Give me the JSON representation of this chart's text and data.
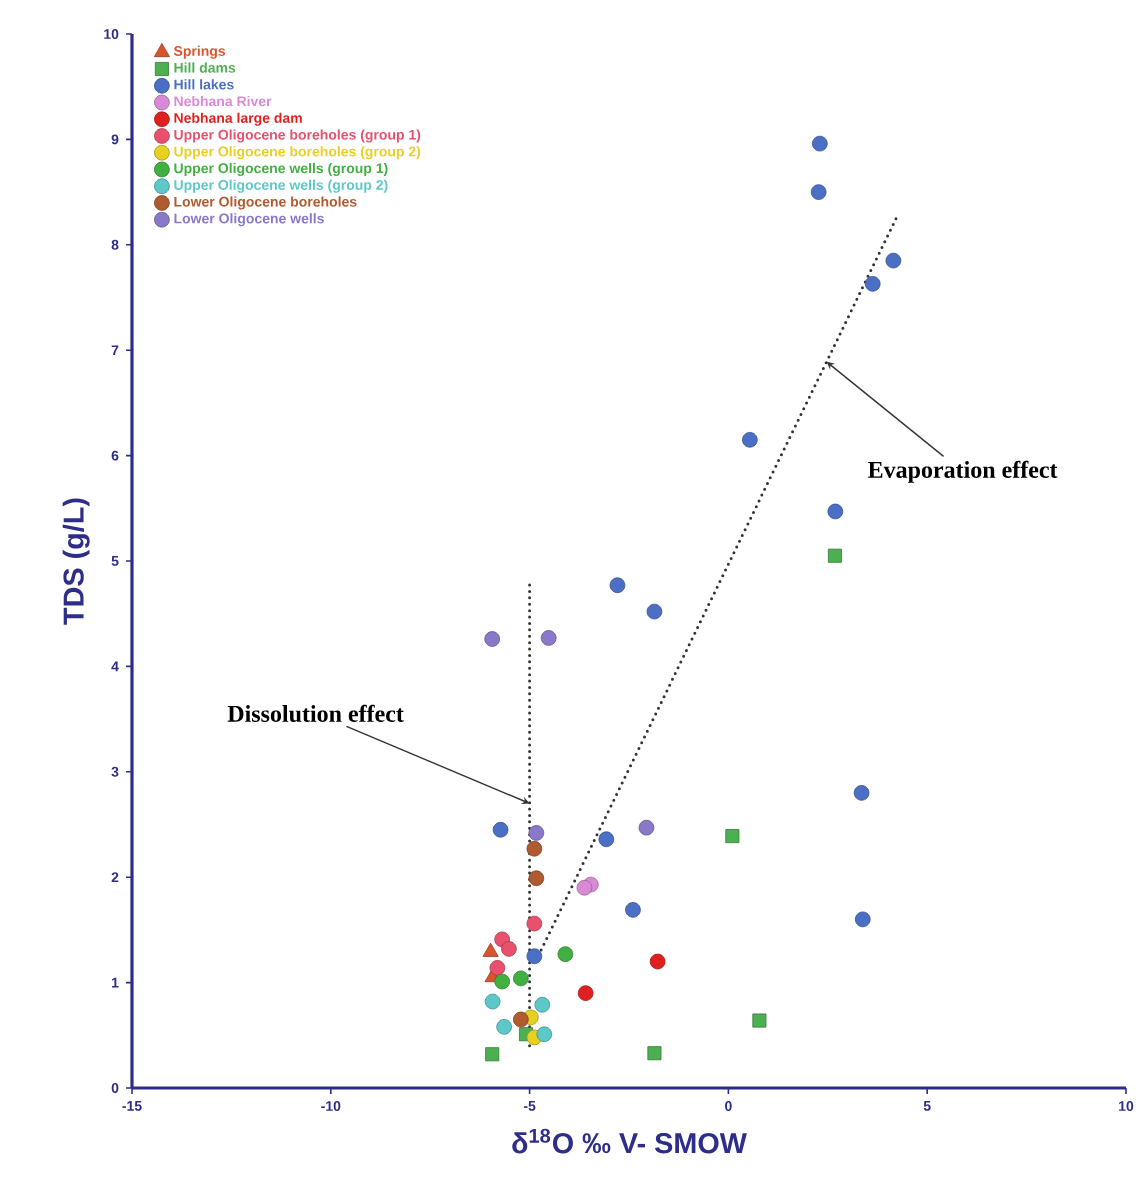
{
  "chart_data": {
    "type": "scatter",
    "xlabel": "δ$^{18}$O ‰ V- SMOW",
    "ylabel": "TDS (g/L)",
    "xlim": [
      -15,
      10
    ],
    "ylim": [
      0,
      10
    ],
    "xticks": [
      -15,
      -10,
      -5,
      0,
      5,
      10
    ],
    "yticks": [
      0,
      1,
      2,
      3,
      4,
      5,
      6,
      7,
      8,
      9,
      10
    ],
    "grid": false,
    "legend": "top left",
    "series": [
      {
        "name": "Springs",
        "color": "#d9542c",
        "marker": "triangle",
        "x": [
          -5.98,
          -5.93
        ],
        "values": [
          1.29,
          1.05
        ]
      },
      {
        "name": "Hill dams",
        "color": "#4caf50",
        "marker": "square",
        "x": [
          2.68,
          0.1,
          0.78,
          -1.86,
          -5.94,
          -5.09
        ],
        "values": [
          5.05,
          2.39,
          0.64,
          0.33,
          0.32,
          0.51
        ]
      },
      {
        "name": "Hill lakes",
        "color": "#4a6fc4",
        "marker": "circle",
        "x": [
          2.3,
          2.27,
          4.15,
          3.63,
          0.54,
          2.69,
          -2.79,
          -1.86,
          -5.73,
          -3.07,
          3.35,
          -2.4,
          3.38,
          -4.88
        ],
        "values": [
          8.96,
          8.5,
          7.85,
          7.63,
          6.15,
          5.47,
          4.77,
          4.52,
          2.45,
          2.36,
          2.8,
          1.69,
          1.6,
          1.25
        ]
      },
      {
        "name": "Nebhana River",
        "color": "#d98ad6",
        "marker": "circle",
        "x": [
          -3.46,
          -3.62
        ],
        "values": [
          1.93,
          1.9
        ]
      },
      {
        "name": "Nebhana large dam",
        "color": "#e02020",
        "marker": "circle",
        "x": [
          -1.78,
          -3.59
        ],
        "values": [
          1.2,
          0.9
        ]
      },
      {
        "name": "Upper Oligocene boreholes (group 1)",
        "color": "#e8506e",
        "marker": "circle",
        "x": [
          -4.88,
          -5.69,
          -5.52,
          -5.81
        ],
        "values": [
          1.56,
          1.41,
          1.32,
          1.14
        ]
      },
      {
        "name": "Upper Oligocene boreholes (group 2)",
        "color": "#e8d020",
        "marker": "circle",
        "x": [
          -4.97,
          -4.88
        ],
        "values": [
          0.67,
          0.48
        ]
      },
      {
        "name": "Upper Oligocene wells (group 1)",
        "color": "#40b040",
        "marker": "circle",
        "x": [
          -4.1,
          -5.69,
          -5.22
        ],
        "values": [
          1.27,
          1.01,
          1.04
        ]
      },
      {
        "name": "Upper Oligocene wells (group 2)",
        "color": "#5cc8c8",
        "marker": "circle",
        "x": [
          -5.93,
          -4.68,
          -5.64,
          -4.63
        ],
        "values": [
          0.82,
          0.79,
          0.58,
          0.51
        ]
      },
      {
        "name": "Lower Oligocene boreholes",
        "color": "#b05a30",
        "marker": "circle",
        "x": [
          -4.88,
          -4.83,
          -5.22
        ],
        "values": [
          2.27,
          1.99,
          0.65
        ]
      },
      {
        "name": "Lower Oligocene wells",
        "color": "#8a78c8",
        "marker": "circle",
        "x": [
          -5.94,
          -4.52,
          -4.83,
          -2.06
        ],
        "values": [
          4.26,
          4.27,
          2.42,
          2.47
        ]
      },
      {
        "type": "line",
        "color": "#333333",
        "line_style": "dotted",
        "marker": "none",
        "x": [
          -5,
          -5
        ],
        "values": [
          0.4,
          4.8
        ]
      },
      {
        "type": "line",
        "color": "#333333",
        "line_style": "dotted",
        "marker": "none",
        "x": [
          -4.85,
          4.27
        ],
        "values": [
          1.2,
          8.29
        ]
      }
    ],
    "annotations": [
      {
        "text": "Dissolution effect",
        "x": -5,
        "y": 2.7
      },
      {
        "text": "Evaporation effect",
        "x": 2.47,
        "y": 6.89
      }
    ]
  }
}
